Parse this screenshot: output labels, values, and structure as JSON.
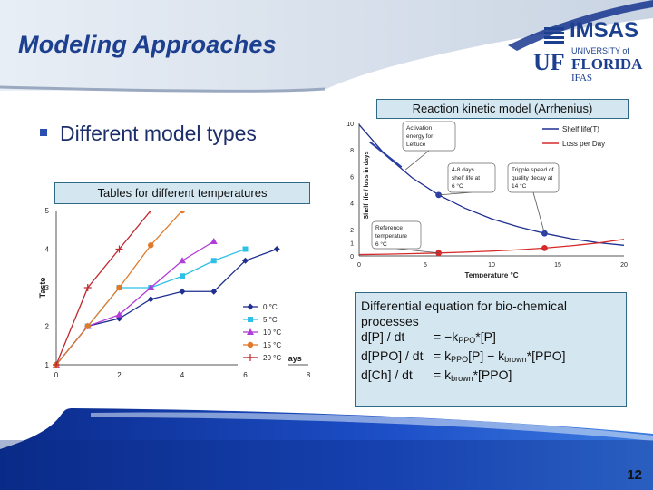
{
  "slide": {
    "title": "Modeling Approaches",
    "bullet": "Different model types",
    "page_number": "12"
  },
  "logo": {
    "imsas": "IMSAS",
    "university_of": "UNIVERSITY of",
    "florida": "FLORIDA",
    "uf": "UF",
    "ifas": "IFAS"
  },
  "labels": {
    "tables_box": "Tables for different temperatures",
    "kinetic_box": "Reaction kinetic model (Arrhenius)"
  },
  "equations": {
    "line1": "Differential equation for bio-chemical",
    "line2": "processes",
    "eq1": {
      "lhs": "d[P] / dt",
      "rhs_pre": "= −k",
      "sub1": "PPO",
      "rhs_post": "*[P]"
    },
    "eq2": {
      "lhs": "d[PPO] / dt",
      "rhs_pre": "= k",
      "sub1": "PPO",
      "mid": "[P] − k",
      "sub2": "brown",
      "rhs_post": "*[PPO]"
    },
    "eq3": {
      "lhs": "d[Ch] / dt",
      "rhs_pre": "= k",
      "sub1": "brown",
      "rhs_post": "*[PPO]"
    }
  },
  "chart_data": [
    {
      "type": "line",
      "ylabel": "Taste",
      "xlabel": "Days",
      "xlim": [
        0,
        8
      ],
      "ylim": [
        1,
        5
      ],
      "x_ticks": [
        "0",
        "2",
        "4",
        "6",
        "8"
      ],
      "y_ticks": [
        "1",
        "2",
        "3",
        "4",
        "5"
      ],
      "legend_position": "bottom-right",
      "series": [
        {
          "name": "0 °C",
          "color": "#1f2f8f",
          "marker": "diamond",
          "x": [
            0,
            1,
            2,
            3,
            4,
            5,
            6,
            7
          ],
          "y": [
            1,
            2,
            2.2,
            2.7,
            2.9,
            2.9,
            3.7,
            4
          ]
        },
        {
          "name": "5 °C",
          "color": "#2fc0e8",
          "marker": "square",
          "x": [
            0,
            1,
            2,
            3,
            4,
            5,
            6
          ],
          "y": [
            1,
            2,
            3,
            3,
            3.3,
            3.7,
            4
          ]
        },
        {
          "name": "10 °C",
          "color": "#b23cd8",
          "marker": "triangle",
          "x": [
            0,
            1,
            2,
            3,
            4,
            5
          ],
          "y": [
            1,
            2,
            2.3,
            3,
            3.7,
            4.2
          ]
        },
        {
          "name": "15 °C",
          "color": "#e07a2a",
          "marker": "circle",
          "x": [
            0,
            1,
            2,
            3,
            4
          ],
          "y": [
            1,
            2,
            3,
            4.1,
            5
          ]
        },
        {
          "name": "20 °C",
          "color": "#c0272d",
          "marker": "plus",
          "x": [
            0,
            1,
            2,
            3
          ],
          "y": [
            1,
            3,
            4,
            5
          ]
        }
      ]
    },
    {
      "type": "line",
      "ylabel": "Shelf life / loss in days",
      "xlabel": "Temperature °C",
      "xlim": [
        0,
        20
      ],
      "ylim": [
        0,
        10
      ],
      "x_ticks": [
        "0",
        "5",
        "10",
        "15",
        "20"
      ],
      "y_ticks": [
        "0",
        "1",
        "2",
        "4",
        "6",
        "8",
        "10"
      ],
      "legend_position": "top-right",
      "series": [
        {
          "name": "Shelf life(T)",
          "color": "#1f2f8f",
          "x": [
            0,
            2,
            4,
            6,
            8,
            10,
            12,
            14,
            16,
            18,
            20
          ],
          "y": [
            9.9,
            7.6,
            5.9,
            4.6,
            3.6,
            2.8,
            2.2,
            1.7,
            1.3,
            1.0,
            0.8
          ]
        },
        {
          "name": "Loss per Day",
          "color": "#d62a2a",
          "x": [
            0,
            2,
            4,
            6,
            8,
            10,
            12,
            14,
            16,
            18,
            20
          ],
          "y": [
            0.1,
            0.13,
            0.17,
            0.22,
            0.28,
            0.36,
            0.46,
            0.59,
            0.76,
            0.97,
            1.25
          ]
        }
      ],
      "highlight_points": [
        {
          "x": 6,
          "y": 4.6,
          "color": "#2a3fa8"
        },
        {
          "x": 14,
          "y": 1.7,
          "color": "#2a3fa8"
        },
        {
          "x": 6,
          "y": 0.22,
          "color": "#d62a2a"
        },
        {
          "x": 14,
          "y": 0.59,
          "color": "#d62a2a"
        }
      ],
      "annotations": [
        "Activation energy for Lettuce",
        "4-8 days shelf life at 6 °C",
        "Tripple speed of quality decay at 14 °C",
        "Reference temperature 6 °C"
      ]
    }
  ]
}
